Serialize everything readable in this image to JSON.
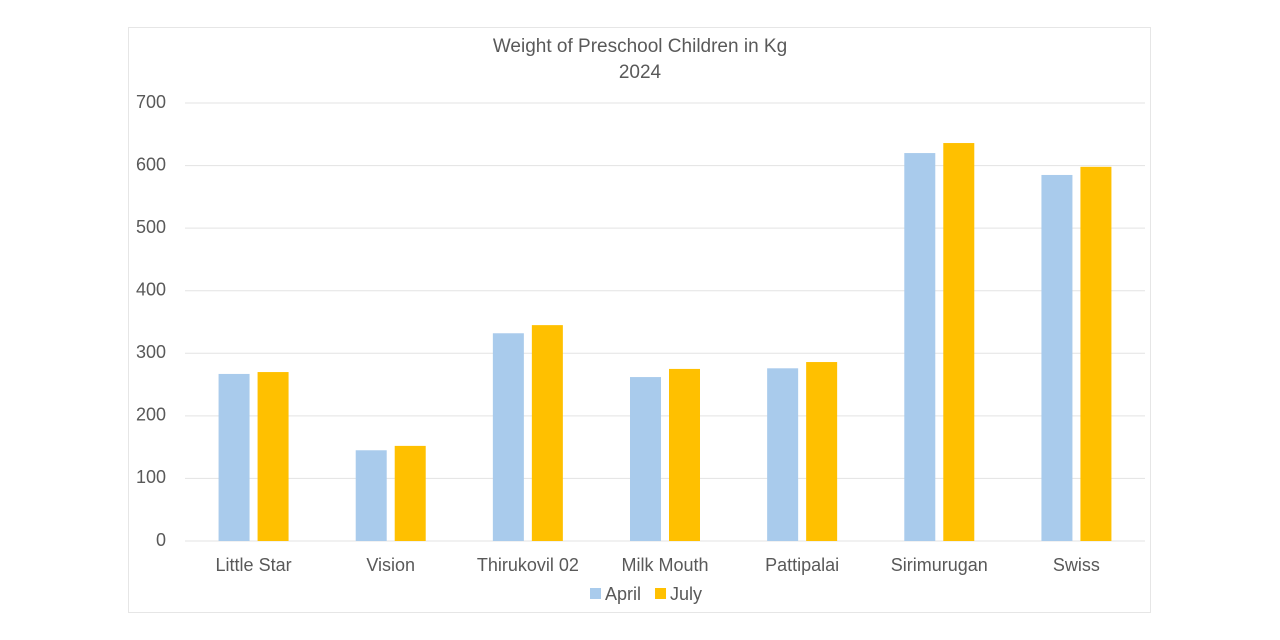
{
  "chart_data": {
    "type": "bar",
    "title": "Weight of Preschool Children in Kg",
    "subtitle": "2024",
    "categories": [
      "Little Star",
      "Vision",
      "Thirukovil 02",
      "Milk Mouth",
      "Pattipalai",
      "Sirimurugan",
      "Swiss"
    ],
    "series": [
      {
        "name": "April",
        "color": "#a9cbec",
        "values": [
          267,
          145,
          332,
          262,
          276,
          620,
          585
        ]
      },
      {
        "name": "July",
        "color": "#ffc000",
        "values": [
          270,
          152,
          345,
          275,
          286,
          636,
          598
        ]
      }
    ],
    "ylim": [
      0,
      700
    ],
    "yticks": [
      0,
      100,
      200,
      300,
      400,
      500,
      600,
      700
    ],
    "grid": true,
    "legend": "bottom"
  }
}
